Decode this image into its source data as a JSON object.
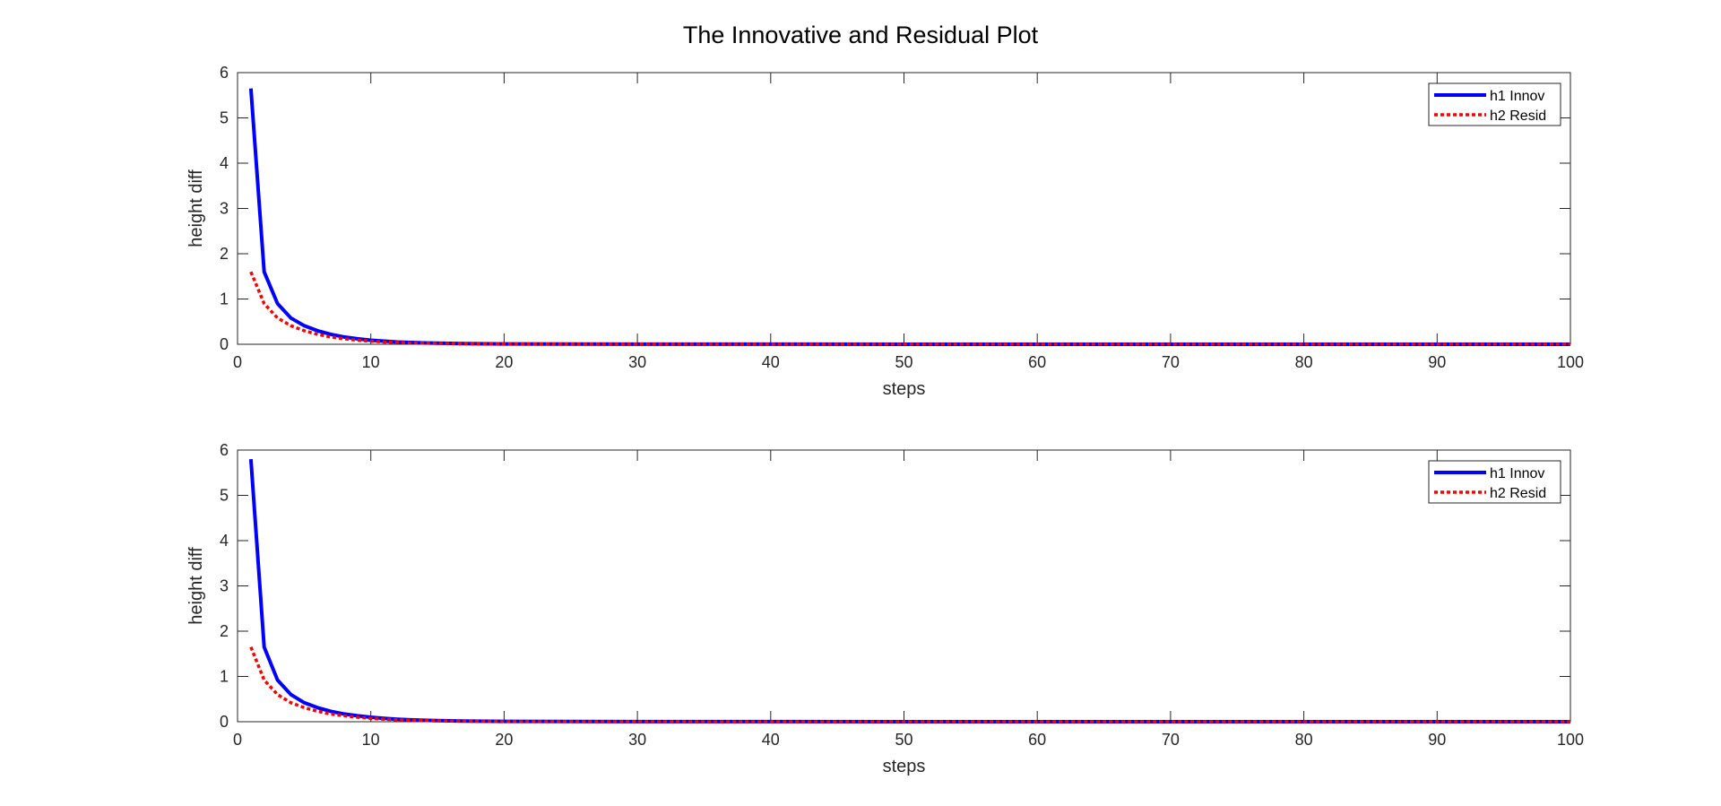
{
  "figure": {
    "title": "The Innovative and Residual Plot"
  },
  "colors": {
    "series1": "#0000ff",
    "series2": "#ff0000",
    "axis": "#262626"
  },
  "chart_data": [
    {
      "type": "line",
      "title": "",
      "xlabel": "steps",
      "ylabel": "height diff",
      "xlim": [
        0,
        100
      ],
      "ylim": [
        0,
        6
      ],
      "xticks": [
        0,
        10,
        20,
        30,
        40,
        50,
        60,
        70,
        80,
        90,
        100
      ],
      "yticks": [
        0,
        1,
        2,
        3,
        4,
        5,
        6
      ],
      "grid": false,
      "legend": "top-right",
      "x": [
        1,
        2,
        3,
        4,
        5,
        6,
        7,
        8,
        9,
        10,
        11,
        12,
        13,
        14,
        15,
        16,
        17,
        18,
        19,
        20,
        25,
        30,
        40,
        50,
        60,
        70,
        80,
        90,
        100
      ],
      "series": [
        {
          "name": "h1 Innov",
          "style": "solid",
          "values": [
            5.65,
            1.6,
            0.9,
            0.58,
            0.41,
            0.3,
            0.22,
            0.16,
            0.12,
            0.09,
            0.07,
            0.05,
            0.04,
            0.03,
            0.025,
            0.02,
            0.015,
            0.012,
            0.01,
            0.008,
            0.004,
            0.002,
            0.001,
            0,
            0,
            0,
            0,
            0,
            0
          ]
        },
        {
          "name": "h2 Resid",
          "style": "dotted",
          "values": [
            1.6,
            0.9,
            0.58,
            0.41,
            0.3,
            0.22,
            0.16,
            0.12,
            0.09,
            0.07,
            0.05,
            0.04,
            0.03,
            0.025,
            0.02,
            0.015,
            0.012,
            0.01,
            0.008,
            0.006,
            0.003,
            0.001,
            0,
            0,
            0,
            0,
            0,
            0,
            0
          ]
        }
      ]
    },
    {
      "type": "line",
      "title": "",
      "xlabel": "steps",
      "ylabel": "height diff",
      "xlim": [
        0,
        100
      ],
      "ylim": [
        0,
        6
      ],
      "xticks": [
        0,
        10,
        20,
        30,
        40,
        50,
        60,
        70,
        80,
        90,
        100
      ],
      "yticks": [
        0,
        1,
        2,
        3,
        4,
        5,
        6
      ],
      "grid": false,
      "legend": "top-right",
      "x": [
        1,
        2,
        3,
        4,
        5,
        6,
        7,
        8,
        9,
        10,
        11,
        12,
        13,
        14,
        15,
        16,
        17,
        18,
        19,
        20,
        25,
        30,
        40,
        50,
        60,
        70,
        80,
        90,
        100
      ],
      "series": [
        {
          "name": "h1 Innov",
          "style": "solid",
          "values": [
            5.8,
            1.65,
            0.92,
            0.6,
            0.42,
            0.31,
            0.23,
            0.17,
            0.13,
            0.1,
            0.075,
            0.055,
            0.042,
            0.032,
            0.025,
            0.02,
            0.015,
            0.012,
            0.01,
            0.008,
            0.004,
            0.002,
            0.001,
            0,
            0,
            0,
            0,
            0,
            0
          ]
        },
        {
          "name": "h2 Resid",
          "style": "dotted",
          "values": [
            1.65,
            0.92,
            0.6,
            0.42,
            0.31,
            0.23,
            0.17,
            0.13,
            0.1,
            0.075,
            0.055,
            0.042,
            0.032,
            0.025,
            0.02,
            0.015,
            0.012,
            0.01,
            0.008,
            0.006,
            0.003,
            0.001,
            0,
            0,
            0,
            0,
            0,
            0,
            0
          ]
        }
      ]
    }
  ]
}
